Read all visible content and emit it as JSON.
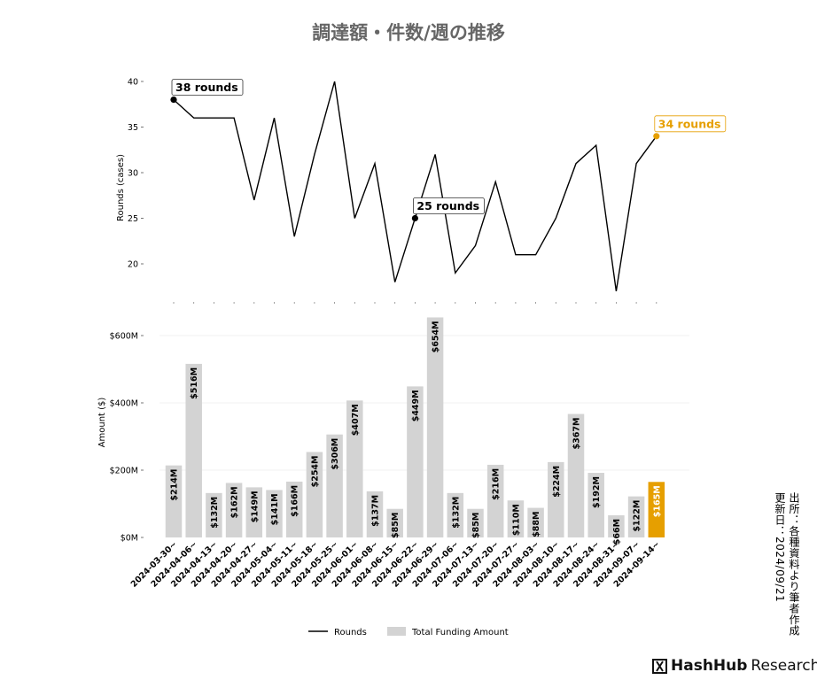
{
  "title": "調達額・件数/週の推移",
  "credit": {
    "source": "出所：各種資料より筆者作成",
    "updated": "更新日：2024/09/21"
  },
  "logo": {
    "brand": "HashHub",
    "suffix": "Research"
  },
  "colors": {
    "bar": "#d3d3d3",
    "highlight": "#e69f00",
    "line": "#000000"
  },
  "chart_data": [
    {
      "type": "line",
      "ylabel": "Rounds (cases)",
      "ylim": [
        16,
        41
      ],
      "yticks": [
        20,
        25,
        30,
        35,
        40
      ],
      "x": [
        "2024-03-30~",
        "2024-04-06~",
        "2024-04-13~",
        "2024-04-20~",
        "2024-04-27~",
        "2024-05-04~",
        "2024-05-11~",
        "2024-05-18~",
        "2024-05-25~",
        "2024-06-01~",
        "2024-06-08~",
        "2024-06-15~",
        "2024-06-22~",
        "2024-06-29~",
        "2024-07-06~",
        "2024-07-13~",
        "2024-07-20~",
        "2024-07-27~",
        "2024-08-03~",
        "2024-08-10~",
        "2024-08-17~",
        "2024-08-24~",
        "2024-08-31~",
        "2024-09-07~",
        "2024-09-14~"
      ],
      "series": [
        {
          "name": "Rounds",
          "values": [
            38,
            36,
            36,
            36,
            27,
            36,
            23,
            32,
            40,
            25,
            31,
            18,
            25,
            32,
            19,
            22,
            29,
            21,
            21,
            25,
            31,
            33,
            17,
            31,
            34
          ]
        }
      ],
      "annotations": [
        {
          "index": 0,
          "text": "38 rounds",
          "highlight": false
        },
        {
          "index": 12,
          "text": "25 rounds",
          "highlight": false
        },
        {
          "index": 24,
          "text": "34 rounds",
          "highlight": true
        }
      ]
    },
    {
      "type": "bar",
      "ylabel": "Amount ($)",
      "ylim": [
        0,
        680
      ],
      "yticks": [
        0,
        200,
        400,
        600
      ],
      "ytick_labels": [
        "$0M",
        "$200M",
        "$400M",
        "$600M"
      ],
      "categories": [
        "2024-03-30~",
        "2024-04-06~",
        "2024-04-13~",
        "2024-04-20~",
        "2024-04-27~",
        "2024-05-04~",
        "2024-05-11~",
        "2024-05-18~",
        "2024-05-25~",
        "2024-06-01~",
        "2024-06-08~",
        "2024-06-15~",
        "2024-06-22~",
        "2024-06-29~",
        "2024-07-06~",
        "2024-07-13~",
        "2024-07-20~",
        "2024-07-27~",
        "2024-08-03~",
        "2024-08-10~",
        "2024-08-17~",
        "2024-08-24~",
        "2024-08-31~",
        "2024-09-07~",
        "2024-09-14~"
      ],
      "series": [
        {
          "name": "Total Funding Amount",
          "values": [
            214,
            516,
            132,
            162,
            149,
            141,
            166,
            254,
            306,
            407,
            137,
            85,
            449,
            654,
            132,
            85,
            216,
            110,
            88,
            224,
            367,
            192,
            66,
            122,
            165
          ]
        }
      ],
      "value_labels": [
        "$214M",
        "$516M",
        "$132M",
        "$162M",
        "$149M",
        "$141M",
        "$166M",
        "$254M",
        "$306M",
        "$407M",
        "$137M",
        "$85M",
        "$449M",
        "$654M",
        "$132M",
        "$85M",
        "$216M",
        "$110M",
        "$88M",
        "$224M",
        "$367M",
        "$192M",
        "$66M",
        "$122M",
        "$165M"
      ],
      "highlight_index": 24,
      "grid": "horizontal",
      "legend": "bottom-center"
    }
  ]
}
